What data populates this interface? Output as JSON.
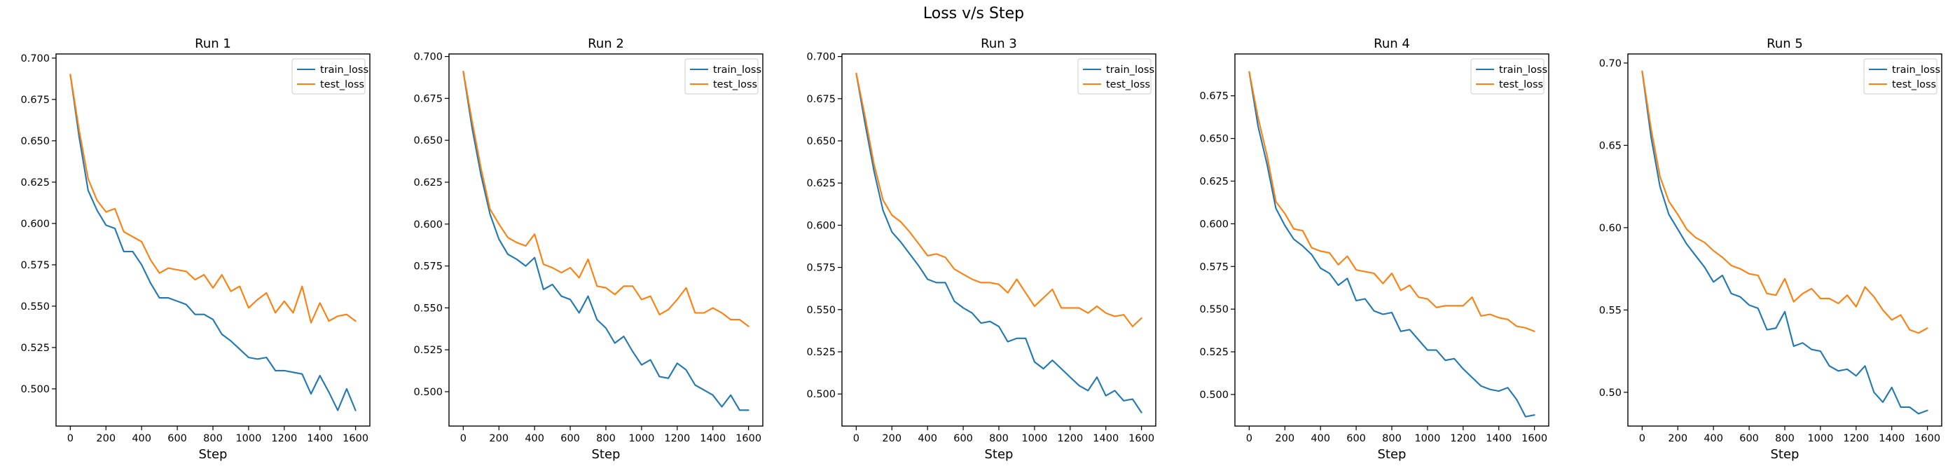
{
  "figure": {
    "title": "Loss v/s Step"
  },
  "chart_data": [
    {
      "type": "line",
      "title": "Run 1",
      "xlabel": "Step",
      "ylabel": "",
      "xlim": [
        -80,
        1680
      ],
      "ylim": [
        0.4775,
        0.7025
      ],
      "xticks": [
        0,
        200,
        400,
        600,
        800,
        1000,
        1200,
        1400,
        1600
      ],
      "yticks": [
        0.5,
        0.525,
        0.55,
        0.575,
        0.6,
        0.625,
        0.65,
        0.675,
        0.7
      ],
      "ytick_labels": [
        "0.500",
        "0.525",
        "0.550",
        "0.575",
        "0.600",
        "0.625",
        "0.650",
        "0.675",
        "0.700"
      ],
      "legend": "top-right",
      "x": [
        0,
        50,
        100,
        150,
        200,
        250,
        300,
        350,
        400,
        450,
        500,
        550,
        600,
        650,
        700,
        750,
        800,
        850,
        900,
        950,
        1000,
        1050,
        1100,
        1150,
        1200,
        1250,
        1300,
        1350,
        1400,
        1450,
        1500,
        1550,
        1600
      ],
      "series": [
        {
          "name": "train_loss",
          "color": "#1f77b4",
          "values": [
            0.69,
            0.652,
            0.62,
            0.608,
            0.599,
            0.597,
            0.583,
            0.583,
            0.575,
            0.564,
            0.555,
            0.555,
            0.553,
            0.551,
            0.545,
            0.545,
            0.542,
            0.533,
            0.529,
            0.524,
            0.519,
            0.518,
            0.519,
            0.511,
            0.511,
            0.51,
            0.509,
            0.497,
            0.508,
            0.498,
            0.487,
            0.5,
            0.487
          ]
        },
        {
          "name": "test_loss",
          "color": "#ff7f0e",
          "values": [
            0.69,
            0.656,
            0.627,
            0.614,
            0.607,
            0.609,
            0.595,
            0.592,
            0.589,
            0.578,
            0.57,
            0.573,
            0.572,
            0.571,
            0.566,
            0.569,
            0.561,
            0.569,
            0.559,
            0.562,
            0.549,
            0.554,
            0.558,
            0.546,
            0.553,
            0.546,
            0.562,
            0.54,
            0.552,
            0.541,
            0.544,
            0.545,
            0.541
          ]
        }
      ]
    },
    {
      "type": "line",
      "title": "Run 2",
      "xlabel": "Step",
      "ylabel": "",
      "xlim": [
        -80,
        1680
      ],
      "ylim": [
        0.4795,
        0.7015
      ],
      "xticks": [
        0,
        200,
        400,
        600,
        800,
        1000,
        1200,
        1400,
        1600
      ],
      "yticks": [
        0.5,
        0.525,
        0.55,
        0.575,
        0.6,
        0.625,
        0.65,
        0.675,
        0.7
      ],
      "ytick_labels": [
        "0.500",
        "0.525",
        "0.550",
        "0.575",
        "0.600",
        "0.625",
        "0.650",
        "0.675",
        "0.700"
      ],
      "legend": "top-right",
      "x": [
        0,
        50,
        100,
        150,
        200,
        250,
        300,
        350,
        400,
        450,
        500,
        550,
        600,
        650,
        700,
        750,
        800,
        850,
        900,
        950,
        1000,
        1050,
        1100,
        1150,
        1200,
        1250,
        1300,
        1350,
        1400,
        1450,
        1500,
        1550,
        1600
      ],
      "series": [
        {
          "name": "train_loss",
          "color": "#1f77b4",
          "values": [
            0.691,
            0.657,
            0.629,
            0.606,
            0.591,
            0.582,
            0.579,
            0.575,
            0.58,
            0.561,
            0.564,
            0.557,
            0.555,
            0.547,
            0.557,
            0.543,
            0.538,
            0.529,
            0.533,
            0.524,
            0.516,
            0.519,
            0.509,
            0.508,
            0.517,
            0.513,
            0.504,
            0.501,
            0.498,
            0.491,
            0.498,
            0.489,
            0.489
          ]
        },
        {
          "name": "test_loss",
          "color": "#ff7f0e",
          "values": [
            0.691,
            0.661,
            0.633,
            0.609,
            0.6,
            0.592,
            0.589,
            0.587,
            0.594,
            0.576,
            0.574,
            0.571,
            0.574,
            0.568,
            0.579,
            0.563,
            0.562,
            0.558,
            0.563,
            0.563,
            0.555,
            0.557,
            0.546,
            0.549,
            0.555,
            0.562,
            0.547,
            0.547,
            0.55,
            0.547,
            0.543,
            0.543,
            0.539
          ]
        }
      ]
    },
    {
      "type": "line",
      "title": "Run 3",
      "xlabel": "Step",
      "ylabel": "",
      "xlim": [
        -80,
        1680
      ],
      "ylim": [
        0.481,
        0.7015
      ],
      "xticks": [
        0,
        200,
        400,
        600,
        800,
        1000,
        1200,
        1400,
        1600
      ],
      "yticks": [
        0.5,
        0.525,
        0.55,
        0.575,
        0.6,
        0.625,
        0.65,
        0.675,
        0.7
      ],
      "ytick_labels": [
        "0.500",
        "0.525",
        "0.550",
        "0.575",
        "0.600",
        "0.625",
        "0.650",
        "0.675",
        "0.700"
      ],
      "legend": "top-right",
      "x": [
        0,
        50,
        100,
        150,
        200,
        250,
        300,
        350,
        400,
        450,
        500,
        550,
        600,
        650,
        700,
        750,
        800,
        850,
        900,
        950,
        1000,
        1050,
        1100,
        1150,
        1200,
        1250,
        1300,
        1350,
        1400,
        1450,
        1500,
        1550,
        1600
      ],
      "series": [
        {
          "name": "train_loss",
          "color": "#1f77b4",
          "values": [
            0.69,
            0.66,
            0.632,
            0.609,
            0.596,
            0.59,
            0.583,
            0.576,
            0.568,
            0.566,
            0.566,
            0.555,
            0.551,
            0.548,
            0.542,
            0.543,
            0.54,
            0.531,
            0.533,
            0.533,
            0.519,
            0.515,
            0.52,
            0.515,
            0.51,
            0.505,
            0.502,
            0.51,
            0.499,
            0.502,
            0.496,
            0.497,
            0.489
          ]
        },
        {
          "name": "test_loss",
          "color": "#ff7f0e",
          "values": [
            0.69,
            0.664,
            0.636,
            0.615,
            0.606,
            0.602,
            0.596,
            0.589,
            0.582,
            0.583,
            0.581,
            0.574,
            0.571,
            0.568,
            0.566,
            0.566,
            0.565,
            0.56,
            0.568,
            0.56,
            0.552,
            0.557,
            0.562,
            0.551,
            0.551,
            0.551,
            0.548,
            0.552,
            0.548,
            0.546,
            0.547,
            0.54,
            0.545
          ]
        }
      ]
    },
    {
      "type": "line",
      "title": "Run 4",
      "xlabel": "Step",
      "ylabel": "",
      "xlim": [
        -80,
        1680
      ],
      "ylim": [
        0.4815,
        0.6995
      ],
      "xticks": [
        0,
        200,
        400,
        600,
        800,
        1000,
        1200,
        1400,
        1600
      ],
      "yticks": [
        0.5,
        0.525,
        0.55,
        0.575,
        0.6,
        0.625,
        0.65,
        0.675
      ],
      "ytick_labels": [
        "0.500",
        "0.525",
        "0.550",
        "0.575",
        "0.600",
        "0.625",
        "0.650",
        "0.675"
      ],
      "legend": "top-right",
      "x": [
        0,
        50,
        100,
        150,
        200,
        250,
        300,
        350,
        400,
        450,
        500,
        550,
        600,
        650,
        700,
        750,
        800,
        850,
        900,
        950,
        1000,
        1050,
        1100,
        1150,
        1200,
        1250,
        1300,
        1350,
        1400,
        1450,
        1500,
        1550,
        1600
      ],
      "series": [
        {
          "name": "train_loss",
          "color": "#1f77b4",
          "values": [
            0.689,
            0.657,
            0.635,
            0.609,
            0.599,
            0.591,
            0.587,
            0.582,
            0.574,
            0.571,
            0.564,
            0.568,
            0.555,
            0.556,
            0.549,
            0.547,
            0.548,
            0.537,
            0.538,
            0.532,
            0.526,
            0.526,
            0.52,
            0.521,
            0.515,
            0.51,
            0.505,
            0.503,
            0.502,
            0.504,
            0.497,
            0.487,
            0.488
          ]
        },
        {
          "name": "test_loss",
          "color": "#ff7f0e",
          "values": [
            0.689,
            0.662,
            0.64,
            0.613,
            0.606,
            0.597,
            0.596,
            0.586,
            0.584,
            0.583,
            0.576,
            0.581,
            0.573,
            0.572,
            0.571,
            0.565,
            0.571,
            0.561,
            0.564,
            0.557,
            0.556,
            0.551,
            0.552,
            0.552,
            0.552,
            0.557,
            0.546,
            0.547,
            0.545,
            0.544,
            0.54,
            0.539,
            0.537
          ]
        }
      ]
    },
    {
      "type": "line",
      "title": "Run 5",
      "xlabel": "Step",
      "ylabel": "",
      "xlim": [
        -80,
        1680
      ],
      "ylim": [
        0.4795,
        0.7055
      ],
      "xticks": [
        0,
        200,
        400,
        600,
        800,
        1000,
        1200,
        1400,
        1600
      ],
      "yticks": [
        0.5,
        0.55,
        0.6,
        0.65,
        0.7
      ],
      "ytick_labels": [
        "0.50",
        "0.55",
        "0.60",
        "0.65",
        "0.70"
      ],
      "legend": "top-right",
      "x": [
        0,
        50,
        100,
        150,
        200,
        250,
        300,
        350,
        400,
        450,
        500,
        550,
        600,
        650,
        700,
        750,
        800,
        850,
        900,
        950,
        1000,
        1050,
        1100,
        1150,
        1200,
        1250,
        1300,
        1350,
        1400,
        1450,
        1500,
        1550,
        1600
      ],
      "series": [
        {
          "name": "train_loss",
          "color": "#1f77b4",
          "values": [
            0.695,
            0.655,
            0.625,
            0.608,
            0.599,
            0.59,
            0.583,
            0.576,
            0.567,
            0.571,
            0.56,
            0.558,
            0.553,
            0.551,
            0.538,
            0.539,
            0.549,
            0.528,
            0.53,
            0.526,
            0.525,
            0.516,
            0.513,
            0.514,
            0.51,
            0.516,
            0.5,
            0.494,
            0.503,
            0.491,
            0.491,
            0.487,
            0.489
          ]
        },
        {
          "name": "test_loss",
          "color": "#ff7f0e",
          "values": [
            0.695,
            0.66,
            0.631,
            0.616,
            0.608,
            0.599,
            0.594,
            0.591,
            0.586,
            0.582,
            0.577,
            0.575,
            0.572,
            0.571,
            0.56,
            0.559,
            0.569,
            0.555,
            0.56,
            0.563,
            0.557,
            0.557,
            0.554,
            0.559,
            0.552,
            0.564,
            0.558,
            0.55,
            0.544,
            0.547,
            0.538,
            0.536,
            0.539
          ]
        }
      ]
    }
  ]
}
